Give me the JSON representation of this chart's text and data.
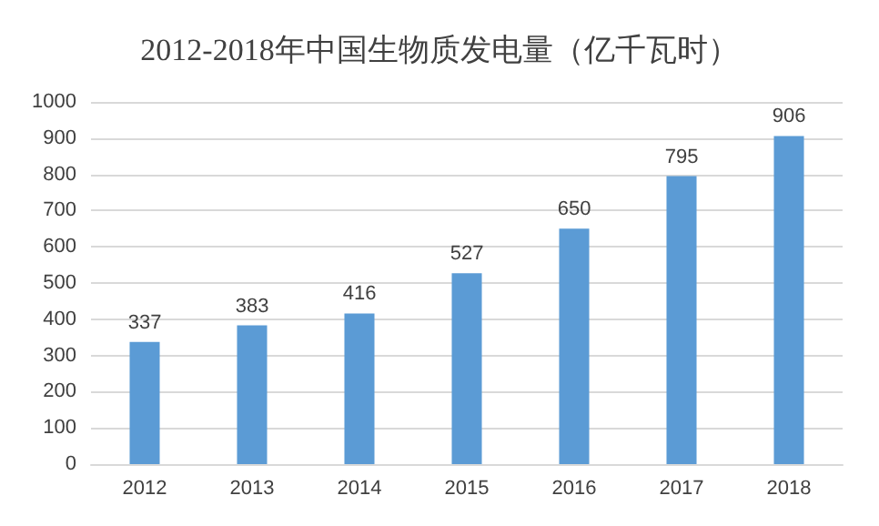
{
  "chart_data": {
    "type": "bar",
    "title": "2012-2018年中国生物质发电量（亿千瓦时）",
    "categories": [
      "2012",
      "2013",
      "2014",
      "2015",
      "2016",
      "2017",
      "2018"
    ],
    "values": [
      337,
      383,
      416,
      527,
      650,
      795,
      906
    ],
    "color": "#5b9bd5",
    "ylim": [
      0,
      1000
    ],
    "yticks": [
      0,
      100,
      200,
      300,
      400,
      500,
      600,
      700,
      800,
      900,
      1000
    ],
    "grid": "y",
    "data_labels": true
  }
}
